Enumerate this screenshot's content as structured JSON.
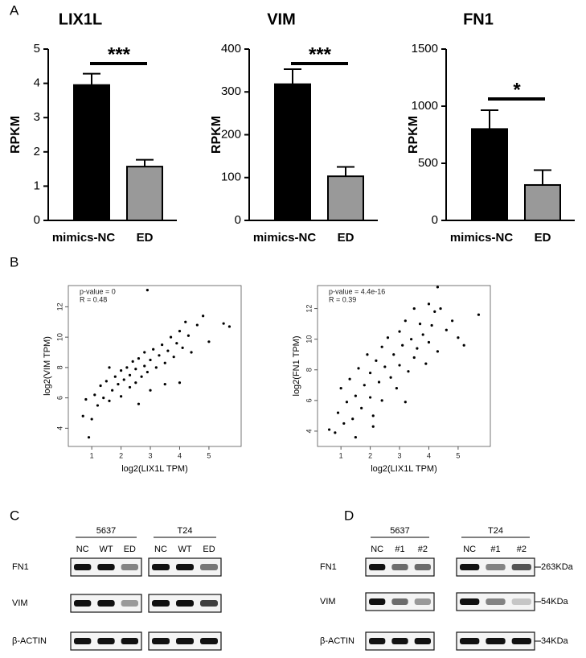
{
  "panels": [
    "A",
    "B",
    "C",
    "D"
  ],
  "chart_data": [
    {
      "type": "bar",
      "title": "LIX1L",
      "y_label": "RPKM",
      "categories": [
        "mimics-NC",
        "ED"
      ],
      "values": [
        3.95,
        1.57
      ],
      "errors": [
        0.33,
        0.2
      ],
      "colors": [
        "#000000",
        "#999999"
      ],
      "significance": "***",
      "ylim": [
        0,
        5
      ],
      "yticks": [
        0,
        1,
        2,
        3,
        4,
        5
      ]
    },
    {
      "type": "bar",
      "title": "VIM",
      "y_label": "RPKM",
      "categories": [
        "mimics-NC",
        "ED"
      ],
      "values": [
        318,
        103
      ],
      "errors": [
        35,
        22
      ],
      "colors": [
        "#000000",
        "#999999"
      ],
      "significance": "***",
      "ylim": [
        0,
        400
      ],
      "yticks": [
        0,
        100,
        200,
        300,
        400
      ]
    },
    {
      "type": "bar",
      "title": "FN1",
      "y_label": "RPKM",
      "categories": [
        "mimics-NC",
        "ED"
      ],
      "values": [
        800,
        310
      ],
      "errors": [
        165,
        130
      ],
      "colors": [
        "#000000",
        "#999999"
      ],
      "significance": "*",
      "ylim": [
        0,
        1500
      ],
      "yticks": [
        0,
        500,
        1000,
        1500
      ]
    },
    {
      "type": "scatter",
      "annotations": [
        "p-value = 0",
        "R = 0.48"
      ],
      "x_label": "log2(LIX1L TPM)",
      "y_label": "log2(VIM TPM)",
      "color": "#000000",
      "x": [
        0.7,
        0.8,
        0.9,
        1.0,
        1.1,
        1.2,
        1.3,
        1.4,
        1.5,
        1.6,
        1.7,
        1.8,
        1.9,
        2.0,
        2.0,
        2.1,
        2.2,
        2.3,
        2.3,
        2.4,
        2.5,
        2.5,
        2.6,
        2.7,
        2.8,
        2.8,
        2.9,
        3.0,
        3.0,
        3.1,
        3.2,
        3.3,
        3.4,
        3.5,
        3.6,
        3.7,
        3.8,
        3.9,
        4.0,
        4.0,
        4.1,
        4.2,
        4.3,
        4.4,
        4.6,
        4.8,
        5.0,
        2.9,
        5.5,
        5.7,
        2.6,
        3.5,
        1.6
      ],
      "values": [
        4.8,
        5.9,
        3.4,
        4.6,
        6.2,
        5.5,
        6.8,
        6.0,
        7.1,
        5.8,
        6.5,
        7.4,
        6.9,
        7.8,
        6.1,
        7.2,
        8.0,
        6.7,
        7.5,
        8.4,
        7.0,
        7.9,
        8.6,
        7.4,
        8.1,
        9.0,
        7.7,
        8.5,
        6.5,
        9.2,
        8.0,
        8.8,
        9.5,
        8.3,
        9.1,
        10.0,
        8.7,
        9.6,
        10.4,
        7.0,
        9.3,
        11.0,
        10.1,
        9.0,
        10.8,
        11.4,
        9.7,
        13.1,
        10.9,
        10.7,
        5.6,
        6.9,
        8.0
      ],
      "xlim": [
        0.2,
        6.1
      ],
      "ylim": [
        2.8,
        13.4
      ],
      "xticks": [
        1,
        2,
        3,
        4,
        5
      ],
      "yticks": [
        4,
        6,
        8,
        10,
        12
      ]
    },
    {
      "type": "scatter",
      "annotations": [
        "p-value = 4.4e-16",
        "R = 0.39"
      ],
      "x_label": "log2(LIX1L TPM)",
      "y_label": "log2(FN1 TPM)",
      "color": "#000000",
      "x": [
        0.6,
        0.8,
        0.9,
        1.0,
        1.1,
        1.2,
        1.3,
        1.4,
        1.5,
        1.6,
        1.7,
        1.8,
        1.9,
        2.0,
        2.0,
        2.1,
        2.2,
        2.3,
        2.4,
        2.4,
        2.5,
        2.6,
        2.7,
        2.8,
        2.9,
        3.0,
        3.0,
        3.1,
        3.2,
        3.3,
        3.4,
        3.5,
        3.5,
        3.6,
        3.7,
        3.8,
        3.9,
        4.0,
        4.0,
        4.1,
        4.2,
        4.3,
        4.4,
        4.6,
        4.8,
        5.0,
        5.2,
        5.7,
        2.1,
        1.5,
        4.3,
        3.2
      ],
      "values": [
        4.1,
        3.9,
        5.2,
        6.8,
        4.5,
        5.9,
        7.4,
        4.8,
        6.3,
        8.1,
        5.5,
        7.0,
        9.0,
        6.2,
        7.8,
        5.0,
        8.6,
        7.2,
        9.5,
        6.0,
        8.2,
        10.1,
        7.5,
        9.0,
        6.8,
        10.5,
        8.3,
        9.6,
        11.2,
        7.9,
        10.0,
        12.0,
        8.8,
        9.4,
        11.0,
        10.3,
        8.4,
        12.3,
        9.8,
        10.9,
        11.8,
        9.2,
        12.0,
        10.6,
        11.2,
        10.1,
        9.6,
        11.6,
        4.3,
        3.6,
        13.4,
        5.9
      ],
      "xlim": [
        0.2,
        6.1
      ],
      "ylim": [
        3.0,
        13.5
      ],
      "xticks": [
        1,
        2,
        3,
        4,
        5
      ],
      "yticks": [
        4,
        6,
        8,
        10,
        12
      ]
    }
  ],
  "blots": [
    {
      "rows": [
        "FN1",
        "VIM",
        "β-ACTIN"
      ],
      "groups": [
        {
          "name": "5637",
          "lanes": [
            "NC",
            "WT",
            "ED"
          ]
        },
        {
          "name": "T24",
          "lanes": [
            "NC",
            "WT",
            "ED"
          ]
        }
      ]
    },
    {
      "rows": [
        "FN1",
        "VIM",
        "β-ACTIN"
      ],
      "groups": [
        {
          "name": "5637",
          "lanes": [
            "NC",
            "#1",
            "#2"
          ]
        },
        {
          "name": "T24",
          "lanes": [
            "NC",
            "#1",
            "#2"
          ]
        }
      ],
      "sizes": [
        "263KDa",
        "54KDa",
        "34KDa"
      ]
    }
  ]
}
